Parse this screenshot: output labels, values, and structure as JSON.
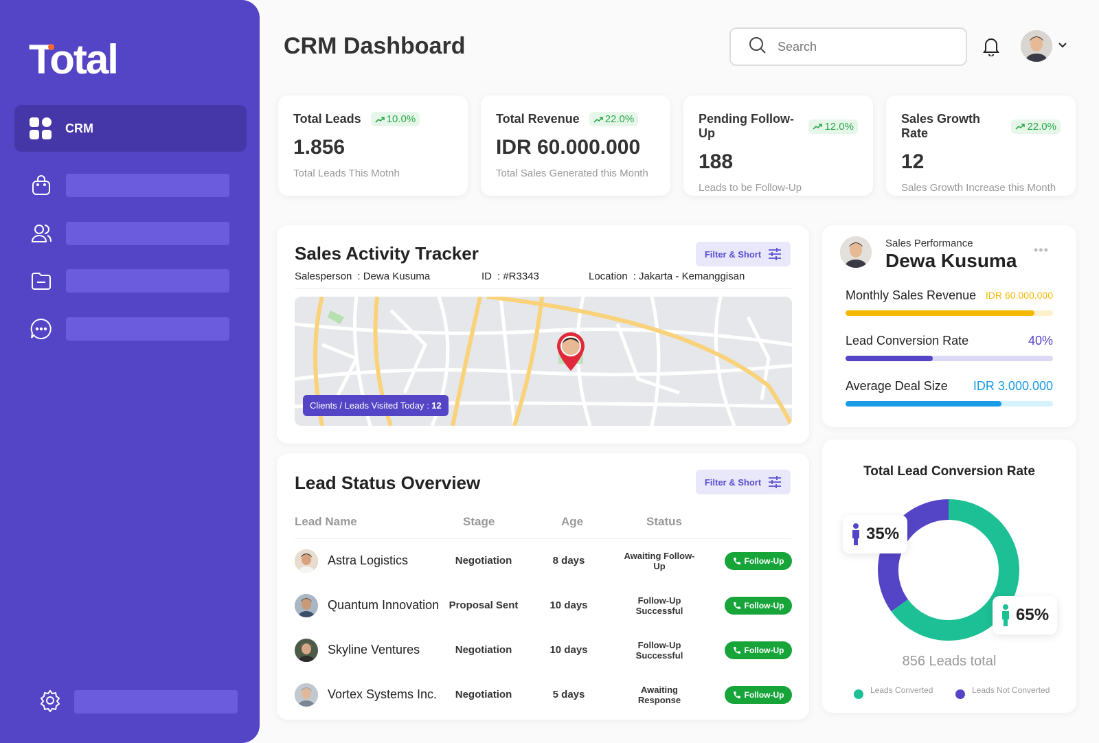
{
  "brand": {
    "name": "Total"
  },
  "sidebar": {
    "active_label": "CRM"
  },
  "header": {
    "title": "CRM Dashboard",
    "search_placeholder": "Search"
  },
  "stats": [
    {
      "title": "Total Leads",
      "change": "10.0%",
      "value": "1.856",
      "sub": "Total Leads This Motnh"
    },
    {
      "title": "Total Revenue",
      "change": "22.0%",
      "value": "IDR 60.000.000",
      "sub": "Total Sales Generated this Month"
    },
    {
      "title": "Pending Follow-Up",
      "change": "12.0%",
      "value": "188",
      "sub": "Leads to be Follow-Up"
    },
    {
      "title": "Sales Growth Rate",
      "change": "22.0%",
      "value": "12",
      "sub": "Sales Growth Increase this Month"
    }
  ],
  "tracker": {
    "title": "Sales Activity Tracker",
    "filter_label": "Filter & Short",
    "salesperson_label": "Salesperson",
    "salesperson": ": Dewa Kusuma",
    "id_label": "ID",
    "id": ": #R3343",
    "location_label": "Location",
    "location": ": Jakarta - Kemanggisan",
    "visited_label": "Clients / Leads Visited Today : ",
    "visited_count": "12"
  },
  "leads": {
    "title": "Lead Status Overview",
    "filter_label": "Filter & Short",
    "columns": [
      "Lead Name",
      "Stage",
      "Age",
      "Status"
    ],
    "action_label": "Follow-Up",
    "rows": [
      {
        "name": "Astra Logistics",
        "stage": "Negotiation",
        "age": "8 days",
        "status": "Awaiting Follow-Up"
      },
      {
        "name": "Quantum Innovation",
        "stage": "Proposal Sent",
        "age": "10 days",
        "status": "Follow-Up Successful"
      },
      {
        "name": "Skyline Ventures",
        "stage": "Negotiation",
        "age": "10 days",
        "status": "Follow-Up Successful"
      },
      {
        "name": "Vortex Systems Inc.",
        "stage": "Negotiation",
        "age": "5 days",
        "status": "Awaiting Response"
      }
    ]
  },
  "performance": {
    "subtitle": "Sales Performance",
    "name": "Dewa Kusuma",
    "metrics": [
      {
        "label": "Monthly Sales Revenue",
        "value": "IDR 60.000.000",
        "progress": 0.91,
        "color": "#f5b800",
        "track": "#fdf1cc"
      },
      {
        "label": "Lead Conversion Rate",
        "value": "40%",
        "progress": 0.42,
        "color": "#5445c6",
        "track": "#dcd9f6"
      },
      {
        "label": "Average Deal Size",
        "value": "IDR 3.000.000",
        "progress": 0.75,
        "color": "#1a9be6",
        "track": "#d3f2fb"
      }
    ]
  },
  "conversion": {
    "title": "Total Lead Conversion Rate",
    "not_converted_pct": "35%",
    "converted_pct": "65%",
    "total_text": "856 Leads total",
    "legend_converted": "Leads Converted",
    "legend_not_converted": "Leads Not Converted",
    "converted_color": "#1dbf94",
    "not_converted_color": "#5445c6",
    "converted_value": 65,
    "not_converted_value": 35
  }
}
